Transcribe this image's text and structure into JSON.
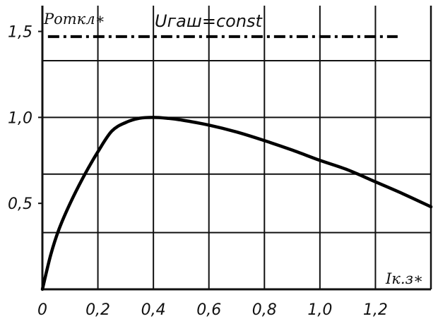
{
  "chart_data": {
    "type": "line",
    "xlabel": "Iк.з∗",
    "ylabel": "Pоткл∗",
    "xlim": [
      0,
      1.4
    ],
    "ylim": [
      0,
      1.65
    ],
    "xticks": [
      {
        "value": 0,
        "label": "0"
      },
      {
        "value": 0.2,
        "label": "0,2"
      },
      {
        "value": 0.4,
        "label": "0,4"
      },
      {
        "value": 0.6,
        "label": "0,6"
      },
      {
        "value": 0.8,
        "label": "0,8"
      },
      {
        "value": 1.0,
        "label": "1,0"
      },
      {
        "value": 1.2,
        "label": "1,2"
      }
    ],
    "yticks": [
      {
        "value": 0.5,
        "label": "0,5"
      },
      {
        "value": 1.0,
        "label": "1,0"
      },
      {
        "value": 1.5,
        "label": "1,5"
      }
    ],
    "xgrid": [
      0.2,
      0.4,
      0.6,
      0.8,
      1.0,
      1.2
    ],
    "ygrid": [
      0.33,
      0.67,
      1.0,
      1.33
    ],
    "grid": true,
    "series": [
      {
        "style": "solid",
        "x": [
          0,
          0.03,
          0.06,
          0.1,
          0.15,
          0.2,
          0.25,
          0.3,
          0.35,
          0.4,
          0.45,
          0.5,
          0.6,
          0.7,
          0.8,
          0.9,
          1.0,
          1.1,
          1.2,
          1.3,
          1.4
        ],
        "y": [
          0,
          0.2,
          0.35,
          0.5,
          0.66,
          0.8,
          0.92,
          0.97,
          0.995,
          1.0,
          0.995,
          0.985,
          0.955,
          0.915,
          0.865,
          0.81,
          0.75,
          0.695,
          0.625,
          0.555,
          0.48
        ]
      },
      {
        "style": "dash-dot",
        "label": "Uгаш=const",
        "x": [
          0.02,
          1.28
        ],
        "y": [
          1.47,
          1.47
        ]
      }
    ],
    "annotations": [
      {
        "text": "Uгаш=const",
        "x": 0.44,
        "y": 1.55
      }
    ]
  }
}
